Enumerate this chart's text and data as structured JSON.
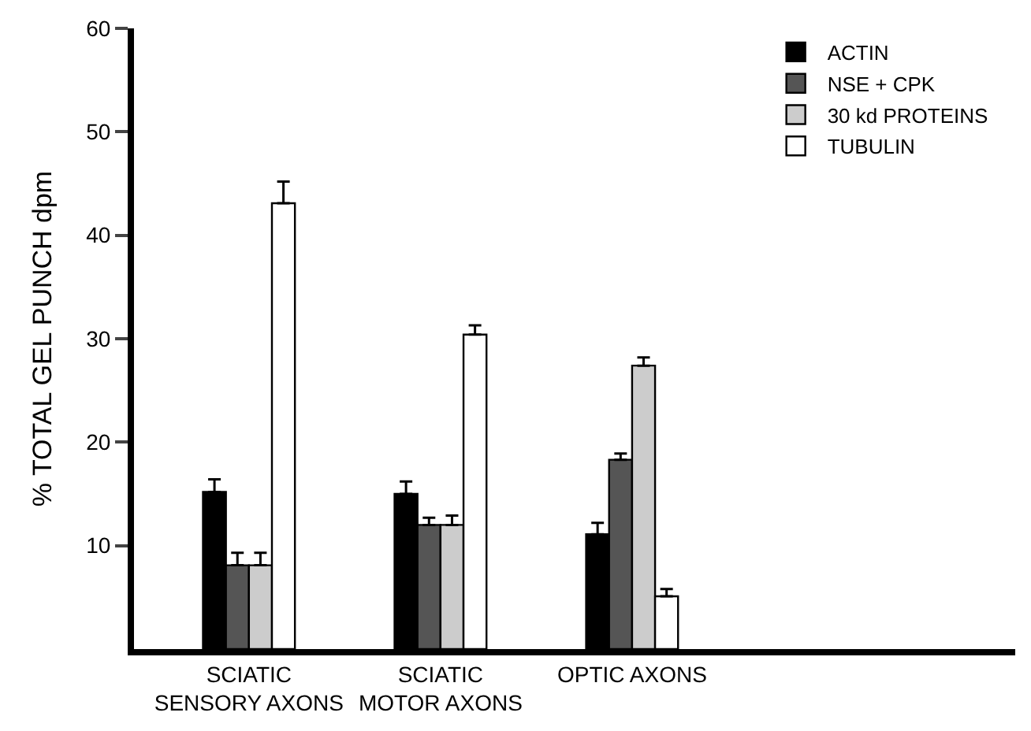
{
  "chart_data": {
    "type": "bar",
    "ylabel": "% TOTAL GEL PUNCH dpm",
    "categories": [
      "SCIATIC\nSENSORY AXONS",
      "SCIATIC\nMOTOR AXONS",
      "OPTIC AXONS"
    ],
    "series": [
      {
        "name": "ACTIN",
        "color": "#000000",
        "values": [
          15.2,
          15,
          11.1
        ],
        "errors": [
          [
            15.2,
            16.4
          ],
          [
            15,
            16.2
          ],
          [
            11.1,
            12.2
          ]
        ]
      },
      {
        "name": "NSE + CPK",
        "color": "#555555",
        "values": [
          8.1,
          12,
          18.3
        ],
        "errors": [
          [
            8.1,
            9.3
          ],
          [
            12,
            12.7
          ],
          [
            18.3,
            18.9
          ]
        ]
      },
      {
        "name": "30 kd PROTEINS",
        "color": "#cccccc",
        "values": [
          8.1,
          12,
          27.4
        ],
        "errors": [
          [
            8.1,
            9.3
          ],
          [
            12,
            12.9
          ],
          [
            27.4,
            28.2
          ]
        ]
      },
      {
        "name": "TUBULIN",
        "color": "#ffffff",
        "values": [
          43.1,
          30.4,
          5.1
        ],
        "errors": [
          [
            43.1,
            45.2
          ],
          [
            30.4,
            31.3
          ],
          [
            5.1,
            5.8
          ]
        ]
      }
    ],
    "ylim": [
      0,
      60
    ],
    "yticks": [
      10,
      20,
      30,
      40,
      50,
      60
    ],
    "legend": "top right"
  }
}
